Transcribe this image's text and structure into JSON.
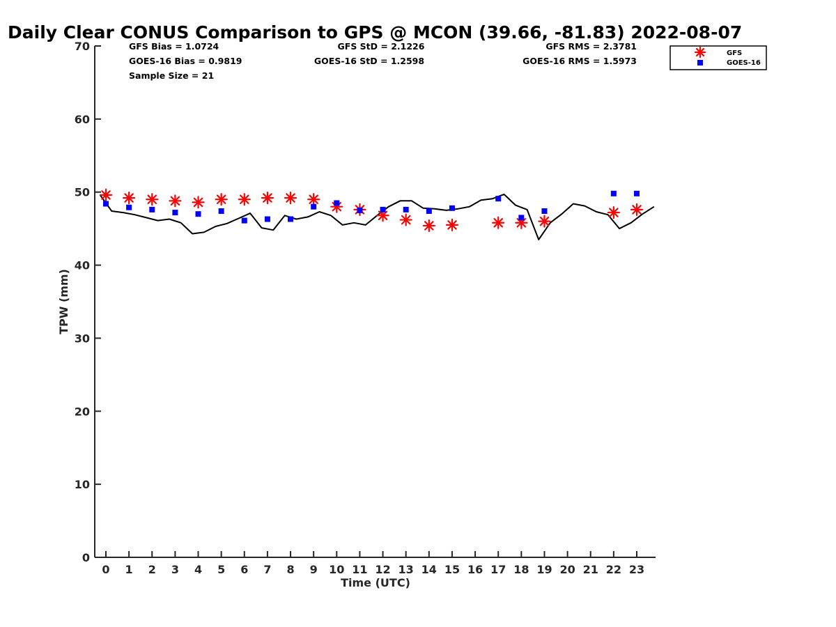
{
  "chart_data": {
    "type": "line",
    "title": "Daily Clear CONUS Comparison to GPS @ MCON (39.66, -81.83) 2022-08-07",
    "xlabel": "Time (UTC)",
    "ylabel": "TPW (mm)",
    "xlim": [
      -0.5,
      23.8
    ],
    "ylim": [
      0,
      70
    ],
    "x_ticks": [
      "0",
      "1",
      "2",
      "3",
      "4",
      "5",
      "6",
      "7",
      "8",
      "9",
      "10",
      "11",
      "12",
      "13",
      "14",
      "15",
      "16",
      "17",
      "18",
      "19",
      "20",
      "21",
      "22",
      "23"
    ],
    "y_ticks": [
      "0",
      "10",
      "20",
      "30",
      "40",
      "50",
      "60",
      "70"
    ],
    "grid": false,
    "legend_position": "top-right",
    "stats": {
      "gfs_bias": "GFS Bias = 1.0724",
      "goes_bias": "GOES-16 Bias = 0.9819",
      "sample_size": "Sample Size = 21",
      "gfs_std": "GFS StD = 2.1226",
      "goes_std": "GOES-16 StD = 1.2598",
      "gfs_rms": "GFS RMS = 2.3781",
      "goes_rms": "GOES-16 RMS = 1.5973"
    },
    "series": [
      {
        "name": "GPS",
        "kind": "line",
        "color": "#000000",
        "x": [
          -0.25,
          0.25,
          0.75,
          1.25,
          1.75,
          2.25,
          2.75,
          3.25,
          3.75,
          4.25,
          4.75,
          5.25,
          5.75,
          6.25,
          6.75,
          7.25,
          7.75,
          8.25,
          8.75,
          9.25,
          9.75,
          10.25,
          10.75,
          11.25,
          11.75,
          12.25,
          12.75,
          13.25,
          13.75,
          14.25,
          14.75,
          15.25,
          15.75,
          16.25,
          16.75,
          17.25,
          17.75,
          18.25,
          18.75,
          19.25,
          19.75,
          20.25,
          20.75,
          21.25,
          21.75,
          22.25,
          22.75,
          23.25,
          23.75
        ],
        "values": [
          49.6,
          47.4,
          47.2,
          46.9,
          46.5,
          46.1,
          46.3,
          45.8,
          44.3,
          44.5,
          45.3,
          45.7,
          46.4,
          47.1,
          45.1,
          44.8,
          46.8,
          46.3,
          46.6,
          47.3,
          46.8,
          45.5,
          45.8,
          45.5,
          46.8,
          48.0,
          48.8,
          48.8,
          47.8,
          47.7,
          47.5,
          47.7,
          48.0,
          48.9,
          49.1,
          49.7,
          48.2,
          47.6,
          43.5,
          45.8,
          47.0,
          48.4,
          48.1,
          47.3,
          46.9,
          45.0,
          45.8,
          47.0,
          48.0
        ]
      },
      {
        "name": "GFS",
        "kind": "marker",
        "marker": "asterisk",
        "color": "#ff0000",
        "x": [
          0,
          1,
          2,
          3,
          4,
          5,
          6,
          7,
          8,
          9,
          10,
          11,
          12,
          13,
          14,
          15,
          17,
          18,
          19,
          22,
          23
        ],
        "values": [
          49.6,
          49.2,
          49.0,
          48.8,
          48.6,
          49.0,
          49.0,
          49.2,
          49.2,
          49.0,
          48.0,
          47.6,
          46.8,
          46.2,
          45.4,
          45.5,
          45.8,
          45.8,
          46.0,
          47.2,
          47.6
        ]
      },
      {
        "name": "GOES-16",
        "kind": "marker",
        "marker": "square",
        "color": "#0000ff",
        "x": [
          0,
          1,
          2,
          3,
          4,
          5,
          6,
          7,
          8,
          9,
          10,
          11,
          12,
          13,
          14,
          15,
          17,
          18,
          19,
          22,
          23
        ],
        "values": [
          48.4,
          47.9,
          47.6,
          47.2,
          47.0,
          47.4,
          46.1,
          46.3,
          46.3,
          48.0,
          48.5,
          47.5,
          47.6,
          47.6,
          47.4,
          47.8,
          49.1,
          46.5,
          47.4,
          49.8,
          49.8
        ]
      }
    ]
  }
}
